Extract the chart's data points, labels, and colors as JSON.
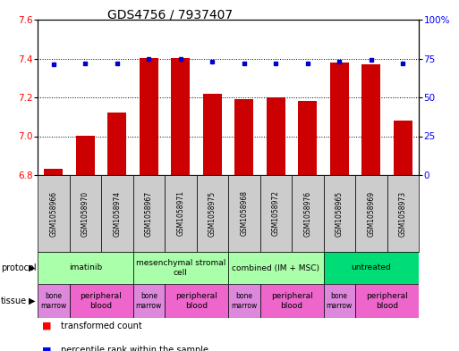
{
  "title": "GDS4756 / 7937407",
  "samples": [
    "GSM1058966",
    "GSM1058970",
    "GSM1058974",
    "GSM1058967",
    "GSM1058971",
    "GSM1058975",
    "GSM1058968",
    "GSM1058972",
    "GSM1058976",
    "GSM1058965",
    "GSM1058969",
    "GSM1058973"
  ],
  "red_values": [
    6.83,
    7.0,
    7.12,
    7.4,
    7.4,
    7.22,
    7.19,
    7.2,
    7.18,
    7.38,
    7.37,
    7.08
  ],
  "blue_values": [
    71,
    72,
    72,
    75,
    75,
    73,
    72,
    72,
    72,
    73,
    74,
    72
  ],
  "ylim_left": [
    6.8,
    7.6
  ],
  "ylim_right": [
    0,
    100
  ],
  "yticks_left": [
    6.8,
    7.0,
    7.2,
    7.4,
    7.6
  ],
  "yticks_right": [
    0,
    25,
    50,
    75,
    100
  ],
  "ytick_labels_right": [
    "0",
    "25",
    "50",
    "75",
    "100%"
  ],
  "protocols": [
    {
      "label": "imatinib",
      "start": 0,
      "end": 3,
      "color": "#aaffaa"
    },
    {
      "label": "mesenchymal stromal\ncell",
      "start": 3,
      "end": 6,
      "color": "#aaffaa"
    },
    {
      "label": "combined (IM + MSC)",
      "start": 6,
      "end": 9,
      "color": "#aaffaa"
    },
    {
      "label": "untreated",
      "start": 9,
      "end": 12,
      "color": "#00dd77"
    }
  ],
  "tissues": [
    {
      "label": "bone\nmarrow",
      "start": 0,
      "end": 1,
      "color": "#dd88dd"
    },
    {
      "label": "peripheral\nblood",
      "start": 1,
      "end": 3,
      "color": "#ee66cc"
    },
    {
      "label": "bone\nmarrow",
      "start": 3,
      "end": 4,
      "color": "#dd88dd"
    },
    {
      "label": "peripheral\nblood",
      "start": 4,
      "end": 6,
      "color": "#ee66cc"
    },
    {
      "label": "bone\nmarrow",
      "start": 6,
      "end": 7,
      "color": "#dd88dd"
    },
    {
      "label": "peripheral\nblood",
      "start": 7,
      "end": 9,
      "color": "#ee66cc"
    },
    {
      "label": "bone\nmarrow",
      "start": 9,
      "end": 10,
      "color": "#dd88dd"
    },
    {
      "label": "peripheral\nblood",
      "start": 10,
      "end": 12,
      "color": "#ee66cc"
    }
  ],
  "bar_color": "#cc0000",
  "dot_color": "#0000cc",
  "bg_color": "#ffffff",
  "sample_bg_color": "#cccccc",
  "title_fontsize": 10,
  "tick_fontsize": 7.5,
  "sample_fontsize": 5.5,
  "annot_fontsize": 6.5,
  "legend_fontsize": 7,
  "label_fontsize": 7
}
